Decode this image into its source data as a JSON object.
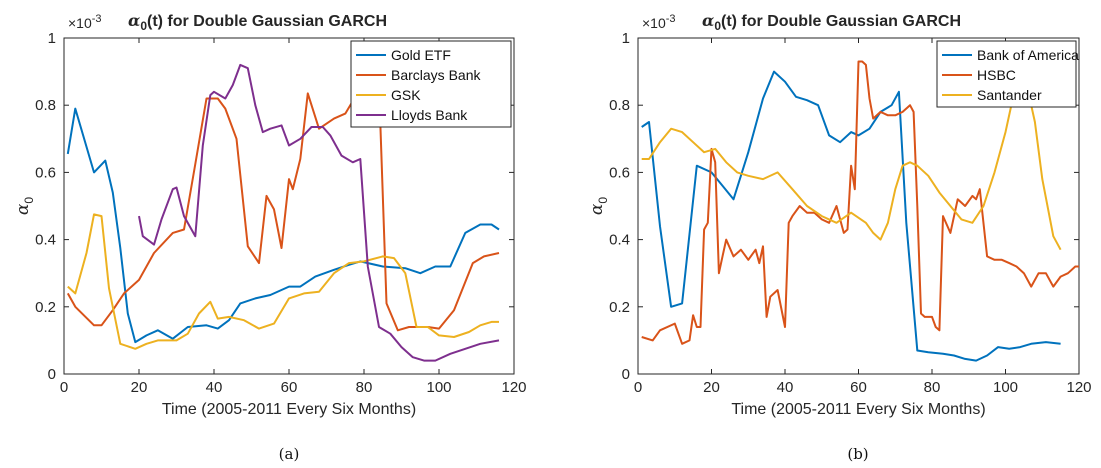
{
  "panels": [
    {
      "caption": "(a)",
      "exponent_label": "×10-3",
      "title": "α0(t) for Double Gaussian GARCH",
      "title_main": "α",
      "title_sub": "0",
      "title_rest": "(t) for Double Gaussian GARCH"
    },
    {
      "caption": "(b)",
      "exponent_label": "×10-3",
      "title": "α0(t) for Double Gaussian GARCH",
      "title_main": "α",
      "title_sub": "0",
      "title_rest": "(t) for Double Gaussian GARCH"
    }
  ],
  "chart_data": [
    {
      "type": "line",
      "title": "α0(t) for Double Gaussian GARCH",
      "xlabel": "Time (2005-2011 Every Six Months)",
      "ylabel": "α0",
      "y_scale_note": "×10^-3",
      "xlim": [
        0,
        120
      ],
      "ylim": [
        0,
        1
      ],
      "xticks": [
        0,
        20,
        40,
        60,
        80,
        100,
        120
      ],
      "yticks": [
        0,
        0.2,
        0.4,
        0.6,
        0.8,
        1
      ],
      "ytick_labels": [
        "0",
        "0.2",
        "0.4",
        "0.6",
        "0.8",
        "1"
      ],
      "grid": false,
      "legend_position": "top-right",
      "series": [
        {
          "name": "Gold ETF",
          "color": "#0072BD",
          "x": [
            1,
            3,
            8,
            11,
            13,
            15,
            17,
            19,
            22,
            25,
            29,
            33,
            38,
            41,
            44,
            47,
            51,
            55,
            60,
            63,
            67,
            72,
            76,
            79,
            85,
            91,
            95,
            99,
            103,
            107,
            111,
            114,
            116
          ],
          "y": [
            0.655,
            0.79,
            0.6,
            0.635,
            0.54,
            0.375,
            0.18,
            0.095,
            0.115,
            0.13,
            0.105,
            0.14,
            0.145,
            0.135,
            0.16,
            0.21,
            0.225,
            0.235,
            0.26,
            0.26,
            0.29,
            0.31,
            0.325,
            0.335,
            0.32,
            0.315,
            0.3,
            0.32,
            0.32,
            0.42,
            0.445,
            0.445,
            0.43
          ]
        },
        {
          "name": "Barclays Bank",
          "color": "#D95319",
          "x": [
            1,
            3,
            8,
            10,
            13,
            16,
            20,
            24,
            29,
            32,
            35,
            38,
            41,
            43,
            46,
            49,
            52,
            54,
            56,
            58,
            60,
            61,
            63,
            65,
            68,
            72,
            75,
            79,
            81,
            84,
            86,
            89,
            92,
            97,
            100,
            104,
            109,
            112,
            116
          ],
          "y": [
            0.24,
            0.2,
            0.145,
            0.145,
            0.19,
            0.24,
            0.28,
            0.36,
            0.42,
            0.43,
            0.625,
            0.82,
            0.82,
            0.79,
            0.7,
            0.38,
            0.33,
            0.53,
            0.49,
            0.375,
            0.58,
            0.55,
            0.64,
            0.835,
            0.73,
            0.76,
            0.775,
            0.85,
            0.9,
            0.86,
            0.21,
            0.13,
            0.14,
            0.14,
            0.135,
            0.19,
            0.33,
            0.35,
            0.36
          ]
        },
        {
          "name": "GSK",
          "color": "#EDB120",
          "x": [
            1,
            3,
            6,
            8,
            10,
            12,
            15,
            19,
            22,
            25,
            30,
            33,
            36,
            39,
            41,
            44,
            48,
            52,
            56,
            60,
            64,
            68,
            72,
            76,
            80,
            85,
            88,
            91,
            94,
            97,
            100,
            104,
            108,
            111,
            114,
            116
          ],
          "y": [
            0.26,
            0.24,
            0.36,
            0.475,
            0.47,
            0.255,
            0.09,
            0.075,
            0.09,
            0.1,
            0.1,
            0.12,
            0.18,
            0.215,
            0.165,
            0.17,
            0.16,
            0.135,
            0.15,
            0.225,
            0.24,
            0.245,
            0.3,
            0.33,
            0.335,
            0.35,
            0.345,
            0.3,
            0.14,
            0.14,
            0.115,
            0.11,
            0.125,
            0.145,
            0.155,
            0.155
          ]
        },
        {
          "name": "Lloyds Bank",
          "color": "#7E2F8E",
          "segments": [
            {
              "x": [
                20,
                21,
                24,
                26,
                29,
                30,
                32,
                35,
                37,
                39,
                40,
                43,
                45,
                47,
                49,
                51,
                53,
                55,
                58,
                60,
                63,
                66,
                69,
                71,
                74,
                77,
                79,
                81,
                84,
                87,
                90,
                93,
                96,
                99,
                103,
                107,
                111,
                116
              ],
              "y": [
                0.47,
                0.41,
                0.385,
                0.46,
                0.55,
                0.555,
                0.47,
                0.41,
                0.68,
                0.83,
                0.84,
                0.82,
                0.86,
                0.92,
                0.91,
                0.8,
                0.72,
                0.73,
                0.74,
                0.68,
                0.7,
                0.735,
                0.735,
                0.71,
                0.65,
                0.63,
                0.64,
                0.32,
                0.14,
                0.12,
                0.08,
                0.05,
                0.04,
                0.04,
                0.06,
                0.075,
                0.09,
                0.1
              ]
            }
          ]
        }
      ]
    },
    {
      "type": "line",
      "title": "α0(t) for Double Gaussian GARCH",
      "xlabel": "Time (2005-2011 Every Six Months)",
      "ylabel": "α0",
      "y_scale_note": "×10^-3",
      "xlim": [
        0,
        120
      ],
      "ylim": [
        0,
        1
      ],
      "xticks": [
        0,
        20,
        40,
        60,
        80,
        100,
        120
      ],
      "yticks": [
        0,
        0.2,
        0.4,
        0.6,
        0.8,
        1
      ],
      "ytick_labels": [
        "0",
        "0.2",
        "0.4",
        "0.6",
        "0.8",
        "1"
      ],
      "grid": false,
      "legend_position": "top-right",
      "series": [
        {
          "name": "Bank of America",
          "color": "#0072BD",
          "x": [
            1,
            3,
            6,
            9,
            12,
            16,
            20,
            23,
            26,
            30,
            34,
            37,
            40,
            43,
            46,
            49,
            52,
            55,
            58,
            60,
            63,
            66,
            69,
            71,
            73,
            76,
            79,
            83,
            86,
            89,
            92,
            95,
            98,
            101,
            104,
            107,
            111,
            115
          ],
          "y": [
            0.735,
            0.75,
            0.44,
            0.2,
            0.21,
            0.62,
            0.6,
            0.56,
            0.52,
            0.66,
            0.82,
            0.9,
            0.87,
            0.825,
            0.815,
            0.8,
            0.71,
            0.69,
            0.72,
            0.71,
            0.73,
            0.78,
            0.8,
            0.84,
            0.45,
            0.07,
            0.065,
            0.06,
            0.055,
            0.045,
            0.04,
            0.055,
            0.08,
            0.075,
            0.08,
            0.09,
            0.095,
            0.09
          ]
        },
        {
          "name": "HSBC",
          "color": "#D95319",
          "x": [
            1,
            4,
            6,
            10,
            12,
            14,
            15,
            16,
            17,
            18,
            19,
            20,
            21,
            22,
            23,
            24,
            26,
            28,
            30,
            32,
            33,
            34,
            35,
            36,
            38,
            40,
            41,
            42,
            44,
            46,
            48,
            50,
            52,
            54,
            56,
            57,
            58,
            59,
            60,
            61,
            62,
            63,
            64,
            66,
            68,
            70,
            72,
            74,
            75,
            76,
            77,
            78,
            80,
            81,
            82,
            83,
            85,
            87,
            89,
            91,
            92,
            93,
            95,
            97,
            99,
            101,
            103,
            105,
            107,
            109,
            111,
            113,
            115,
            117,
            119,
            120
          ],
          "y": [
            0.11,
            0.1,
            0.13,
            0.15,
            0.09,
            0.1,
            0.175,
            0.14,
            0.14,
            0.43,
            0.45,
            0.67,
            0.63,
            0.3,
            0.35,
            0.4,
            0.35,
            0.37,
            0.34,
            0.37,
            0.33,
            0.38,
            0.17,
            0.23,
            0.25,
            0.14,
            0.45,
            0.47,
            0.5,
            0.48,
            0.48,
            0.46,
            0.45,
            0.5,
            0.42,
            0.43,
            0.62,
            0.55,
            0.93,
            0.93,
            0.92,
            0.82,
            0.76,
            0.78,
            0.77,
            0.77,
            0.78,
            0.8,
            0.78,
            0.5,
            0.18,
            0.17,
            0.17,
            0.14,
            0.13,
            0.47,
            0.42,
            0.52,
            0.5,
            0.53,
            0.52,
            0.55,
            0.35,
            0.34,
            0.34,
            0.33,
            0.32,
            0.3,
            0.26,
            0.3,
            0.3,
            0.26,
            0.29,
            0.3,
            0.32,
            0.32
          ]
        },
        {
          "name": "Santander",
          "color": "#EDB120",
          "x": [
            1,
            3,
            6,
            9,
            12,
            15,
            18,
            21,
            24,
            27,
            30,
            34,
            38,
            42,
            46,
            50,
            54,
            58,
            62,
            64,
            66,
            68,
            70,
            72,
            74,
            76,
            79,
            82,
            85,
            88,
            91,
            94,
            97,
            100,
            102,
            104,
            106,
            108,
            110,
            113,
            115
          ],
          "y": [
            0.64,
            0.64,
            0.69,
            0.73,
            0.72,
            0.69,
            0.66,
            0.67,
            0.63,
            0.6,
            0.59,
            0.58,
            0.6,
            0.55,
            0.5,
            0.47,
            0.45,
            0.48,
            0.45,
            0.42,
            0.4,
            0.45,
            0.55,
            0.62,
            0.63,
            0.62,
            0.59,
            0.54,
            0.5,
            0.46,
            0.45,
            0.5,
            0.6,
            0.72,
            0.82,
            0.95,
            0.85,
            0.75,
            0.58,
            0.41,
            0.37
          ]
        }
      ]
    }
  ]
}
